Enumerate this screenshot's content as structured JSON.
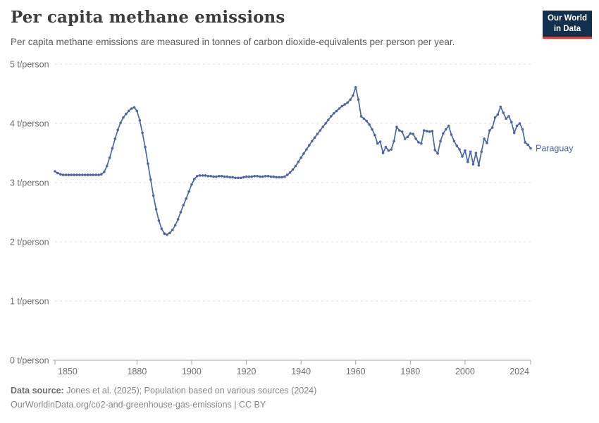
{
  "header": {
    "title": "Per capita methane emissions",
    "logo": {
      "line1": "Our World",
      "line2": "in Data"
    }
  },
  "subtitle": "Per capita methane emissions are measured in tonnes of carbon dioxide-equivalents per person per year.",
  "chart_data": {
    "type": "line",
    "title": "Per capita methane emissions",
    "entity_label": "Paraguay",
    "unit_suffix": " t/person",
    "x_start": 1850,
    "x_end": 2024,
    "x_ticks": [
      1850,
      1880,
      1900,
      1920,
      1940,
      1960,
      1980,
      2000,
      2024
    ],
    "y_ticks": [
      0,
      1,
      2,
      3,
      4,
      5
    ],
    "ylim": [
      0,
      5
    ],
    "grid": "horizontal-dashed",
    "markers": true,
    "legend_position": "end-of-line-label",
    "series": [
      {
        "name": "Paraguay",
        "color": "#4b68a2",
        "values": [
          3.19,
          3.16,
          3.14,
          3.13,
          3.13,
          3.13,
          3.13,
          3.13,
          3.13,
          3.13,
          3.13,
          3.13,
          3.13,
          3.13,
          3.13,
          3.13,
          3.13,
          3.14,
          3.18,
          3.28,
          3.42,
          3.58,
          3.74,
          3.89,
          4.01,
          4.1,
          4.16,
          4.21,
          4.25,
          4.27,
          4.21,
          4.05,
          3.84,
          3.6,
          3.32,
          3.05,
          2.78,
          2.55,
          2.36,
          2.22,
          2.14,
          2.12,
          2.15,
          2.2,
          2.28,
          2.38,
          2.5,
          2.62,
          2.73,
          2.85,
          2.97,
          3.06,
          3.11,
          3.12,
          3.12,
          3.12,
          3.11,
          3.11,
          3.1,
          3.1,
          3.11,
          3.11,
          3.1,
          3.1,
          3.09,
          3.09,
          3.08,
          3.08,
          3.08,
          3.09,
          3.1,
          3.1,
          3.1,
          3.11,
          3.11,
          3.1,
          3.1,
          3.11,
          3.11,
          3.1,
          3.1,
          3.09,
          3.09,
          3.09,
          3.1,
          3.13,
          3.17,
          3.22,
          3.28,
          3.35,
          3.42,
          3.49,
          3.56,
          3.63,
          3.7,
          3.76,
          3.82,
          3.88,
          3.94,
          4.0,
          4.06,
          4.12,
          4.17,
          4.21,
          4.25,
          4.29,
          4.32,
          4.35,
          4.4,
          4.47,
          4.61,
          4.4,
          4.12,
          4.08,
          4.04,
          3.98,
          3.9,
          3.8,
          3.66,
          3.69,
          3.5,
          3.6,
          3.54,
          3.56,
          3.7,
          3.94,
          3.88,
          3.86,
          3.74,
          3.77,
          3.83,
          3.82,
          3.74,
          3.68,
          3.66,
          3.88,
          3.87,
          3.86,
          3.87,
          3.55,
          3.49,
          3.7,
          3.83,
          3.9,
          3.96,
          3.81,
          3.7,
          3.62,
          3.56,
          3.44,
          3.54,
          3.35,
          3.52,
          3.31,
          3.5,
          3.29,
          3.52,
          3.74,
          3.67,
          3.88,
          3.93,
          4.1,
          4.15,
          4.28,
          4.18,
          4.08,
          4.12,
          4.02,
          3.84,
          3.96,
          4.0,
          3.9,
          3.68,
          3.64,
          3.58
        ]
      }
    ]
  },
  "footer": {
    "datasource_label": "Data source:",
    "datasource_text": " Jones et al. (2025); Population based on various sources (2024)",
    "license_line": "OurWorldinData.org/co2-and-greenhouse-gas-emissions | CC BY"
  },
  "colors": {
    "line": "#4b68a2",
    "logo_bg": "#12304e",
    "logo_red": "#e0403c",
    "grid": "#dcdcdc",
    "axis": "#a5a5a5",
    "tick_text": "#6e6e6e",
    "title_text": "#3d3d3d",
    "subtitle_text": "#5b5b5b",
    "footer_text": "#858585"
  }
}
